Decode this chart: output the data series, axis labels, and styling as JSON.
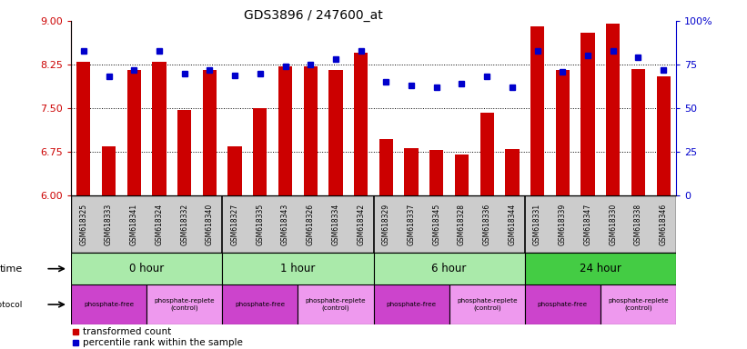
{
  "title": "GDS3896 / 247600_at",
  "samples": [
    "GSM618325",
    "GSM618333",
    "GSM618341",
    "GSM618324",
    "GSM618332",
    "GSM618340",
    "GSM618327",
    "GSM618335",
    "GSM618343",
    "GSM618326",
    "GSM618334",
    "GSM618342",
    "GSM618329",
    "GSM618337",
    "GSM618345",
    "GSM618328",
    "GSM618336",
    "GSM618344",
    "GSM618331",
    "GSM618339",
    "GSM618347",
    "GSM618330",
    "GSM618338",
    "GSM618346"
  ],
  "bar_values": [
    8.3,
    6.85,
    8.15,
    8.3,
    7.47,
    8.15,
    6.85,
    7.5,
    8.22,
    8.22,
    8.15,
    8.45,
    6.97,
    6.82,
    6.78,
    6.7,
    7.42,
    6.8,
    8.9,
    8.15,
    8.8,
    8.95,
    8.18,
    8.05
  ],
  "percentile_values": [
    83,
    68,
    72,
    83,
    70,
    72,
    69,
    70,
    74,
    75,
    78,
    83,
    65,
    63,
    62,
    64,
    68,
    62,
    83,
    71,
    80,
    83,
    79,
    72
  ],
  "ylim_left": [
    6,
    9
  ],
  "ylim_right": [
    0,
    100
  ],
  "yticks_left": [
    6,
    6.75,
    7.5,
    8.25,
    9
  ],
  "yticks_right": [
    0,
    25,
    50,
    75,
    100
  ],
  "bar_color": "#CC0000",
  "dot_color": "#0000CC",
  "bar_width": 0.55,
  "time_groups": [
    {
      "label": "0 hour",
      "start": 0,
      "end": 6,
      "color": "#AAEAAA"
    },
    {
      "label": "1 hour",
      "start": 6,
      "end": 12,
      "color": "#AAEAAA"
    },
    {
      "label": "6 hour",
      "start": 12,
      "end": 18,
      "color": "#AAEAAA"
    },
    {
      "label": "24 hour",
      "start": 18,
      "end": 24,
      "color": "#44CC44"
    }
  ],
  "protocol_groups": [
    {
      "label": "phosphate-free",
      "start": 0,
      "end": 3,
      "color": "#CC44CC"
    },
    {
      "label": "phosphate-replete\n(control)",
      "start": 3,
      "end": 6,
      "color": "#EE99EE"
    },
    {
      "label": "phosphate-free",
      "start": 6,
      "end": 9,
      "color": "#CC44CC"
    },
    {
      "label": "phosphate-replete\n(control)",
      "start": 9,
      "end": 12,
      "color": "#EE99EE"
    },
    {
      "label": "phosphate-free",
      "start": 12,
      "end": 15,
      "color": "#CC44CC"
    },
    {
      "label": "phosphate-replete\n(control)",
      "start": 15,
      "end": 18,
      "color": "#EE99EE"
    },
    {
      "label": "phosphate-free",
      "start": 18,
      "end": 21,
      "color": "#CC44CC"
    },
    {
      "label": "phosphate-replete\n(control)",
      "start": 21,
      "end": 24,
      "color": "#EE99EE"
    }
  ],
  "legend_items": [
    {
      "label": "transformed count",
      "color": "#CC0000"
    },
    {
      "label": "percentile rank within the sample",
      "color": "#0000CC"
    }
  ],
  "axis_color_left": "#CC0000",
  "axis_color_right": "#0000CC",
  "sample_bg": "#CCCCCC",
  "grid_lines": [
    6.75,
    7.5,
    8.25
  ]
}
